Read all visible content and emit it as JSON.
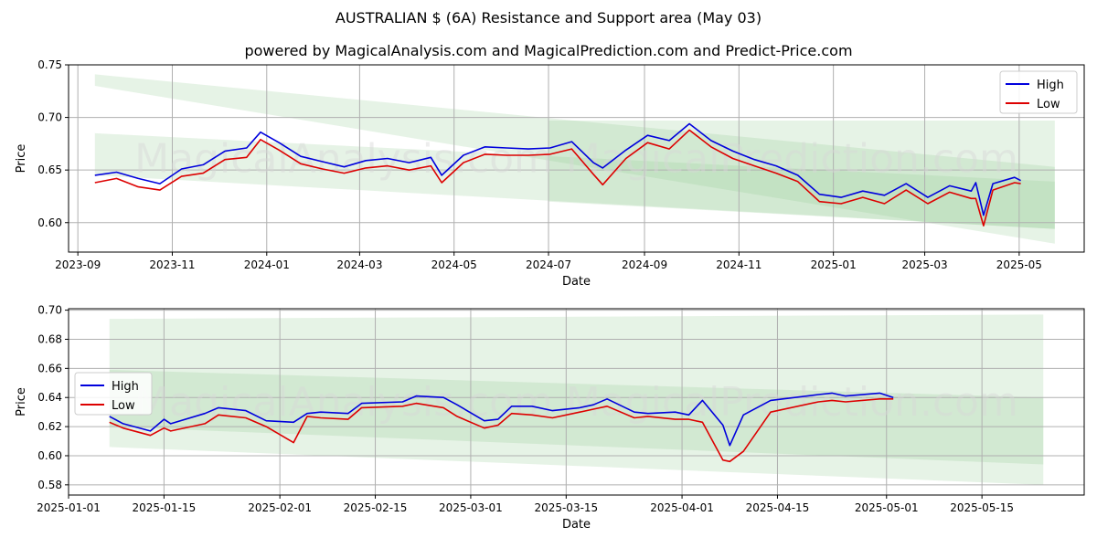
{
  "title": "AUSTRALIAN $ (6A) Resistance and Support area (May 03)",
  "subtitle": "powered by MagicalAnalysis.com and MagicalPrediction.com and Predict-Price.com",
  "watermark": "MagicalAnalysis.com    MagicalPrediction.com",
  "colors": {
    "high": "#0000dd",
    "low": "#dd0000",
    "band": "#8fc98f"
  },
  "chart_data": [
    {
      "type": "line",
      "xlabel": "Date",
      "ylabel": "Price",
      "xlim": [
        "2023-08-26",
        "2025-06-12"
      ],
      "ylim": [
        0.572,
        0.75
      ],
      "x_ticks": [
        "2023-09",
        "2023-11",
        "2024-01",
        "2024-03",
        "2024-05",
        "2024-07",
        "2024-09",
        "2024-11",
        "2025-01",
        "2025-03",
        "2025-05"
      ],
      "y_ticks": [
        "0.60",
        "0.65",
        "0.70",
        "0.75"
      ],
      "grid": true,
      "legend": "top-right",
      "bands": [
        {
          "x": [
            "2023-09-12",
            "2025-05-24"
          ],
          "upper": [
            0.741,
            0.653
          ],
          "lower": [
            0.73,
            0.58
          ]
        },
        {
          "x": [
            "2023-09-12",
            "2025-05-24"
          ],
          "upper": [
            0.685,
            0.639
          ],
          "lower": [
            0.645,
            0.594
          ]
        },
        {
          "x": [
            "2024-07-01",
            "2025-05-24"
          ],
          "upper": [
            0.697,
            0.697
          ],
          "lower": [
            0.62,
            0.594
          ]
        }
      ],
      "series": [
        {
          "name": "High",
          "x": [
            "2023-09-12",
            "2023-09-26",
            "2023-10-10",
            "2023-10-24",
            "2023-11-07",
            "2023-11-21",
            "2023-12-05",
            "2023-12-19",
            "2023-12-28",
            "2024-01-09",
            "2024-01-23",
            "2024-02-06",
            "2024-02-20",
            "2024-03-05",
            "2024-03-19",
            "2024-04-02",
            "2024-04-16",
            "2024-04-23",
            "2024-05-07",
            "2024-05-21",
            "2024-06-04",
            "2024-06-18",
            "2024-07-02",
            "2024-07-16",
            "2024-07-30",
            "2024-08-05",
            "2024-08-20",
            "2024-09-03",
            "2024-09-17",
            "2024-09-30",
            "2024-10-14",
            "2024-10-28",
            "2024-11-11",
            "2024-11-25",
            "2024-12-09",
            "2024-12-23",
            "2025-01-06",
            "2025-01-20",
            "2025-02-03",
            "2025-02-17",
            "2025-03-03",
            "2025-03-17",
            "2025-03-31",
            "2025-04-03",
            "2025-04-08",
            "2025-04-14",
            "2025-04-28",
            "2025-05-02"
          ],
          "values": [
            0.645,
            0.648,
            0.642,
            0.637,
            0.651,
            0.655,
            0.668,
            0.671,
            0.686,
            0.676,
            0.663,
            0.658,
            0.653,
            0.659,
            0.661,
            0.657,
            0.662,
            0.645,
            0.664,
            0.672,
            0.671,
            0.67,
            0.671,
            0.677,
            0.657,
            0.652,
            0.669,
            0.683,
            0.678,
            0.694,
            0.678,
            0.668,
            0.66,
            0.654,
            0.645,
            0.627,
            0.624,
            0.63,
            0.626,
            0.637,
            0.624,
            0.635,
            0.63,
            0.638,
            0.607,
            0.637,
            0.643,
            0.64
          ]
        },
        {
          "name": "Low",
          "x": [
            "2023-09-12",
            "2023-09-26",
            "2023-10-10",
            "2023-10-24",
            "2023-11-07",
            "2023-11-21",
            "2023-12-05",
            "2023-12-19",
            "2023-12-28",
            "2024-01-09",
            "2024-01-23",
            "2024-02-06",
            "2024-02-20",
            "2024-03-05",
            "2024-03-19",
            "2024-04-02",
            "2024-04-16",
            "2024-04-23",
            "2024-05-07",
            "2024-05-21",
            "2024-06-04",
            "2024-06-18",
            "2024-07-02",
            "2024-07-16",
            "2024-07-30",
            "2024-08-05",
            "2024-08-20",
            "2024-09-03",
            "2024-09-17",
            "2024-09-30",
            "2024-10-14",
            "2024-10-28",
            "2024-11-11",
            "2024-11-25",
            "2024-12-09",
            "2024-12-23",
            "2025-01-06",
            "2025-01-20",
            "2025-02-03",
            "2025-02-17",
            "2025-03-03",
            "2025-03-17",
            "2025-03-31",
            "2025-04-03",
            "2025-04-08",
            "2025-04-14",
            "2025-04-28",
            "2025-05-02"
          ],
          "values": [
            0.638,
            0.642,
            0.634,
            0.631,
            0.644,
            0.647,
            0.66,
            0.662,
            0.679,
            0.669,
            0.656,
            0.651,
            0.647,
            0.652,
            0.654,
            0.65,
            0.654,
            0.638,
            0.657,
            0.665,
            0.664,
            0.664,
            0.665,
            0.67,
            0.646,
            0.636,
            0.661,
            0.676,
            0.67,
            0.688,
            0.672,
            0.661,
            0.654,
            0.647,
            0.639,
            0.62,
            0.618,
            0.624,
            0.618,
            0.631,
            0.618,
            0.629,
            0.623,
            0.623,
            0.597,
            0.631,
            0.638,
            0.637
          ]
        }
      ]
    },
    {
      "type": "line",
      "xlabel": "Date",
      "ylabel": "Price",
      "xlim": [
        "2025-01-01",
        "2025-05-30"
      ],
      "ylim": [
        0.573,
        0.701
      ],
      "x_ticks": [
        "2025-01-01",
        "2025-01-15",
        "2025-02-01",
        "2025-02-15",
        "2025-03-01",
        "2025-03-15",
        "2025-04-01",
        "2025-04-15",
        "2025-05-01",
        "2025-05-15"
      ],
      "y_ticks": [
        "0.58",
        "0.60",
        "0.62",
        "0.64",
        "0.66",
        "0.68",
        "0.70"
      ],
      "grid": true,
      "legend": "center-left",
      "bands": [
        {
          "x": [
            "2025-01-07",
            "2025-05-24"
          ],
          "upper": [
            0.694,
            0.697
          ],
          "lower": [
            0.606,
            0.58
          ]
        },
        {
          "x": [
            "2025-01-07",
            "2025-05-24"
          ],
          "upper": [
            0.659,
            0.64
          ],
          "lower": [
            0.62,
            0.594
          ]
        }
      ],
      "series": [
        {
          "name": "High",
          "x": [
            "2025-01-07",
            "2025-01-09",
            "2025-01-13",
            "2025-01-15",
            "2025-01-16",
            "2025-01-21",
            "2025-01-23",
            "2025-01-27",
            "2025-01-30",
            "2025-02-03",
            "2025-02-05",
            "2025-02-07",
            "2025-02-11",
            "2025-02-13",
            "2025-02-19",
            "2025-02-21",
            "2025-02-25",
            "2025-02-27",
            "2025-03-03",
            "2025-03-05",
            "2025-03-07",
            "2025-03-10",
            "2025-03-13",
            "2025-03-17",
            "2025-03-19",
            "2025-03-21",
            "2025-03-25",
            "2025-03-27",
            "2025-03-31",
            "2025-04-02",
            "2025-04-04",
            "2025-04-07",
            "2025-04-08",
            "2025-04-10",
            "2025-04-14",
            "2025-04-21",
            "2025-04-23",
            "2025-04-25",
            "2025-04-30",
            "2025-05-02"
          ],
          "values": [
            0.627,
            0.622,
            0.617,
            0.625,
            0.622,
            0.629,
            0.633,
            0.631,
            0.624,
            0.623,
            0.629,
            0.63,
            0.629,
            0.636,
            0.637,
            0.641,
            0.64,
            0.635,
            0.624,
            0.625,
            0.634,
            0.634,
            0.631,
            0.633,
            0.635,
            0.639,
            0.63,
            0.629,
            0.63,
            0.628,
            0.638,
            0.621,
            0.607,
            0.628,
            0.638,
            0.642,
            0.643,
            0.641,
            0.643,
            0.64
          ]
        },
        {
          "name": "Low",
          "x": [
            "2025-01-07",
            "2025-01-09",
            "2025-01-13",
            "2025-01-15",
            "2025-01-16",
            "2025-01-21",
            "2025-01-23",
            "2025-01-27",
            "2025-01-30",
            "2025-02-03",
            "2025-02-05",
            "2025-02-07",
            "2025-02-11",
            "2025-02-13",
            "2025-02-19",
            "2025-02-21",
            "2025-02-25",
            "2025-02-27",
            "2025-03-03",
            "2025-03-05",
            "2025-03-07",
            "2025-03-10",
            "2025-03-13",
            "2025-03-17",
            "2025-03-19",
            "2025-03-21",
            "2025-03-25",
            "2025-03-27",
            "2025-03-31",
            "2025-04-02",
            "2025-04-04",
            "2025-04-07",
            "2025-04-08",
            "2025-04-10",
            "2025-04-14",
            "2025-04-21",
            "2025-04-23",
            "2025-04-25",
            "2025-04-30",
            "2025-05-02"
          ],
          "values": [
            0.623,
            0.619,
            0.614,
            0.619,
            0.617,
            0.622,
            0.628,
            0.626,
            0.62,
            0.609,
            0.627,
            0.626,
            0.625,
            0.633,
            0.634,
            0.636,
            0.633,
            0.627,
            0.619,
            0.621,
            0.629,
            0.628,
            0.626,
            0.63,
            0.632,
            0.634,
            0.626,
            0.627,
            0.625,
            0.625,
            0.623,
            0.597,
            0.596,
            0.603,
            0.63,
            0.637,
            0.638,
            0.637,
            0.639,
            0.639
          ]
        }
      ]
    }
  ]
}
